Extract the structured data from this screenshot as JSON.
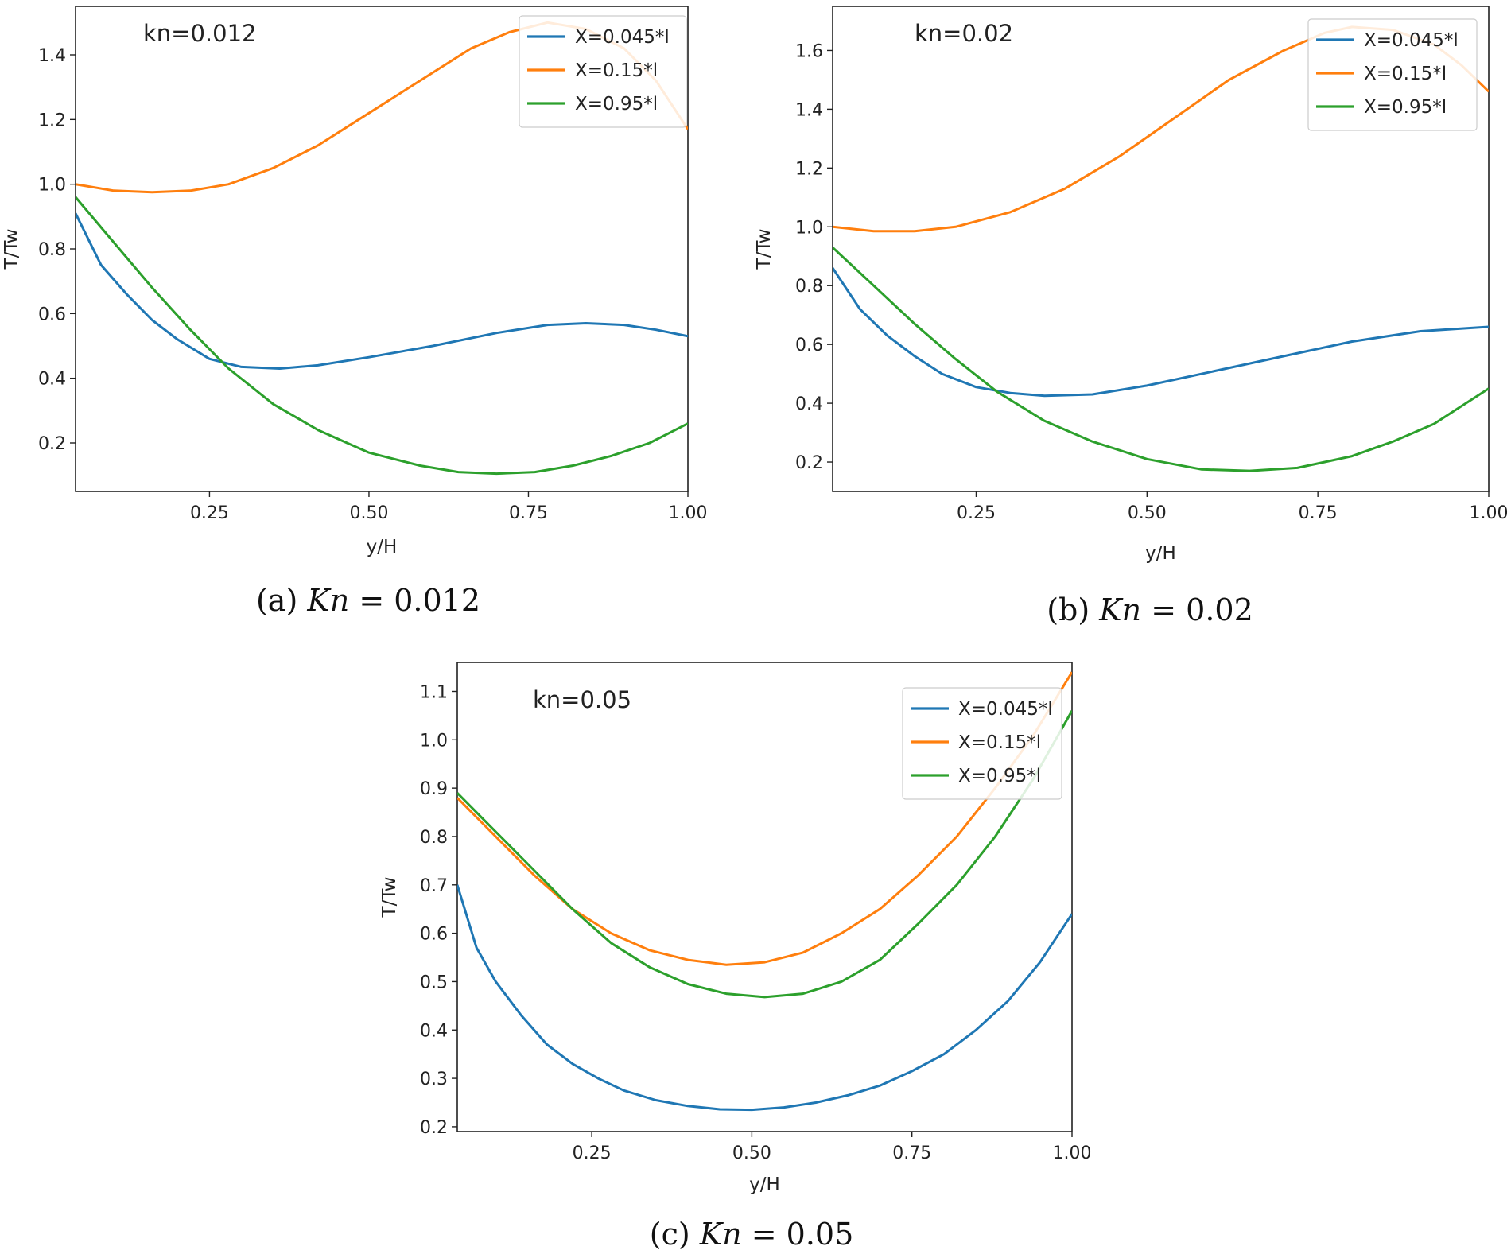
{
  "chart_data": [
    {
      "type": "line",
      "panel": "a",
      "annotation": "kn=0.012",
      "xlabel": "y/H",
      "ylabel": "T/Tw",
      "xlim": [
        0.04,
        1.0
      ],
      "ylim": [
        0.05,
        1.55
      ],
      "xticks": [
        "0.25",
        "0.50",
        "0.75",
        "1.00"
      ],
      "xtick_values": [
        0.25,
        0.5,
        0.75,
        1.0
      ],
      "yticks": [
        "0.2",
        "0.4",
        "0.6",
        "0.8",
        "1.0",
        "1.2",
        "1.4"
      ],
      "ytick_values": [
        0.2,
        0.4,
        0.6,
        0.8,
        1.0,
        1.2,
        1.4
      ],
      "legend": "top-right",
      "caption": {
        "label": "(a)",
        "var": "Kn",
        "eq": "= 0.012"
      },
      "series": [
        {
          "name": "X=0.045*l",
          "color": "#1f77b4",
          "x": [
            0.04,
            0.08,
            0.12,
            0.16,
            0.2,
            0.25,
            0.3,
            0.36,
            0.42,
            0.5,
            0.6,
            0.7,
            0.78,
            0.84,
            0.9,
            0.95,
            1.0
          ],
          "y": [
            0.91,
            0.75,
            0.66,
            0.58,
            0.52,
            0.46,
            0.435,
            0.43,
            0.44,
            0.465,
            0.5,
            0.54,
            0.565,
            0.57,
            0.565,
            0.55,
            0.53
          ]
        },
        {
          "name": "X=0.15*l",
          "color": "#ff7f0e",
          "x": [
            0.04,
            0.1,
            0.16,
            0.22,
            0.28,
            0.35,
            0.42,
            0.5,
            0.58,
            0.66,
            0.72,
            0.78,
            0.84,
            0.9,
            0.95,
            1.0
          ],
          "y": [
            1.0,
            0.98,
            0.975,
            0.98,
            1.0,
            1.05,
            1.12,
            1.22,
            1.32,
            1.42,
            1.47,
            1.5,
            1.48,
            1.42,
            1.32,
            1.17
          ]
        },
        {
          "name": "X=0.95*l",
          "color": "#2ca02c",
          "x": [
            0.04,
            0.1,
            0.16,
            0.22,
            0.28,
            0.35,
            0.42,
            0.5,
            0.58,
            0.64,
            0.7,
            0.76,
            0.82,
            0.88,
            0.94,
            1.0
          ],
          "y": [
            0.96,
            0.82,
            0.68,
            0.55,
            0.43,
            0.32,
            0.24,
            0.17,
            0.13,
            0.11,
            0.105,
            0.11,
            0.13,
            0.16,
            0.2,
            0.26
          ]
        }
      ]
    },
    {
      "type": "line",
      "panel": "b",
      "annotation": "kn=0.02",
      "xlabel": "y/H",
      "ylabel": "T/Tw",
      "xlim": [
        0.04,
        1.0
      ],
      "ylim": [
        0.1,
        1.75
      ],
      "xticks": [
        "0.25",
        "0.50",
        "0.75",
        "1.00"
      ],
      "xtick_values": [
        0.25,
        0.5,
        0.75,
        1.0
      ],
      "yticks": [
        "0.2",
        "0.4",
        "0.6",
        "0.8",
        "1.0",
        "1.2",
        "1.4",
        "1.6"
      ],
      "ytick_values": [
        0.2,
        0.4,
        0.6,
        0.8,
        1.0,
        1.2,
        1.4,
        1.6
      ],
      "legend": "top-right",
      "caption": {
        "label": "(b)",
        "var": "Kn",
        "eq": "= 0.02"
      },
      "series": [
        {
          "name": "X=0.045*l",
          "color": "#1f77b4",
          "x": [
            0.04,
            0.08,
            0.12,
            0.16,
            0.2,
            0.25,
            0.3,
            0.35,
            0.42,
            0.5,
            0.6,
            0.7,
            0.8,
            0.9,
            1.0
          ],
          "y": [
            0.86,
            0.72,
            0.63,
            0.56,
            0.5,
            0.455,
            0.435,
            0.425,
            0.43,
            0.46,
            0.51,
            0.56,
            0.61,
            0.645,
            0.66
          ]
        },
        {
          "name": "X=0.15*l",
          "color": "#ff7f0e",
          "x": [
            0.04,
            0.1,
            0.16,
            0.22,
            0.3,
            0.38,
            0.46,
            0.54,
            0.62,
            0.7,
            0.76,
            0.8,
            0.86,
            0.92,
            0.96,
            1.0
          ],
          "y": [
            1.0,
            0.985,
            0.985,
            1.0,
            1.05,
            1.13,
            1.24,
            1.37,
            1.5,
            1.6,
            1.66,
            1.68,
            1.67,
            1.62,
            1.55,
            1.46
          ]
        },
        {
          "name": "X=0.95*l",
          "color": "#2ca02c",
          "x": [
            0.04,
            0.1,
            0.16,
            0.22,
            0.28,
            0.35,
            0.42,
            0.5,
            0.58,
            0.65,
            0.72,
            0.8,
            0.86,
            0.92,
            0.96,
            1.0
          ],
          "y": [
            0.93,
            0.8,
            0.67,
            0.55,
            0.44,
            0.34,
            0.27,
            0.21,
            0.175,
            0.17,
            0.18,
            0.22,
            0.27,
            0.33,
            0.39,
            0.45
          ]
        }
      ]
    },
    {
      "type": "line",
      "panel": "c",
      "annotation": "kn=0.05",
      "xlabel": "y/H",
      "ylabel": "T/Tw",
      "xlim": [
        0.04,
        1.0
      ],
      "ylim": [
        0.19,
        1.16
      ],
      "xticks": [
        "0.25",
        "0.50",
        "0.75",
        "1.00"
      ],
      "xtick_values": [
        0.25,
        0.5,
        0.75,
        1.0
      ],
      "yticks": [
        "0.2",
        "0.3",
        "0.4",
        "0.5",
        "0.6",
        "0.7",
        "0.8",
        "0.9",
        "1.0",
        "1.1"
      ],
      "ytick_values": [
        0.2,
        0.3,
        0.4,
        0.5,
        0.6,
        0.7,
        0.8,
        0.9,
        1.0,
        1.1
      ],
      "legend": "top-right",
      "caption": {
        "label": "(c)",
        "var": "Kn",
        "eq": "= 0.05"
      },
      "series": [
        {
          "name": "X=0.045*l",
          "color": "#1f77b4",
          "x": [
            0.04,
            0.07,
            0.1,
            0.14,
            0.18,
            0.22,
            0.26,
            0.3,
            0.35,
            0.4,
            0.45,
            0.5,
            0.55,
            0.6,
            0.65,
            0.7,
            0.75,
            0.8,
            0.85,
            0.9,
            0.95,
            1.0
          ],
          "y": [
            0.7,
            0.57,
            0.5,
            0.43,
            0.37,
            0.33,
            0.3,
            0.275,
            0.255,
            0.243,
            0.236,
            0.235,
            0.24,
            0.25,
            0.265,
            0.285,
            0.315,
            0.35,
            0.4,
            0.46,
            0.54,
            0.64
          ]
        },
        {
          "name": "X=0.15*l",
          "color": "#ff7f0e",
          "x": [
            0.04,
            0.1,
            0.16,
            0.22,
            0.28,
            0.34,
            0.4,
            0.46,
            0.52,
            0.58,
            0.64,
            0.7,
            0.76,
            0.82,
            0.88,
            0.94,
            1.0
          ],
          "y": [
            0.88,
            0.8,
            0.72,
            0.65,
            0.6,
            0.565,
            0.545,
            0.535,
            0.54,
            0.56,
            0.6,
            0.65,
            0.72,
            0.8,
            0.9,
            1.01,
            1.14
          ]
        },
        {
          "name": "X=0.95*l",
          "color": "#2ca02c",
          "x": [
            0.04,
            0.1,
            0.16,
            0.22,
            0.28,
            0.34,
            0.4,
            0.46,
            0.52,
            0.58,
            0.64,
            0.7,
            0.76,
            0.82,
            0.88,
            0.94,
            1.0
          ],
          "y": [
            0.89,
            0.81,
            0.73,
            0.65,
            0.58,
            0.53,
            0.495,
            0.475,
            0.468,
            0.475,
            0.5,
            0.545,
            0.62,
            0.7,
            0.8,
            0.92,
            1.06
          ]
        }
      ]
    }
  ]
}
